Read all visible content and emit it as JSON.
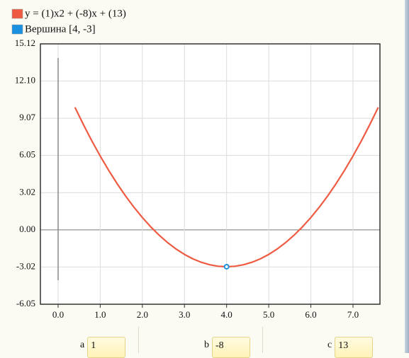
{
  "chart_data": {
    "type": "line",
    "series": [
      {
        "name": "y = (1)x2 + (-8)x + (13)",
        "color": "#ee5b42",
        "x": [
          0.4,
          0.6,
          0.8,
          1.0,
          1.2,
          1.4,
          1.6,
          1.8,
          2.0,
          2.2,
          2.4,
          2.6,
          2.8,
          3.0,
          3.2,
          3.4,
          3.6,
          3.8,
          4.0,
          4.2,
          4.4,
          4.6,
          4.8,
          5.0,
          5.2,
          5.4,
          5.6,
          5.8,
          6.0,
          6.2,
          6.4,
          6.6,
          6.8,
          7.0,
          7.2,
          7.4,
          7.6
        ],
        "values": [
          9.96,
          8.56,
          7.24,
          6,
          4.84,
          3.76,
          2.76,
          1.84,
          1,
          0.24,
          -0.44,
          -1.04,
          -1.56,
          -2,
          -2.36,
          -2.64,
          -2.84,
          -2.96,
          -3,
          -2.96,
          -2.84,
          -2.64,
          -2.36,
          -2,
          -1.56,
          -1.04,
          -0.44,
          0.24,
          1,
          1.84,
          2.76,
          3.76,
          4.84,
          6,
          7.24,
          8.56,
          9.96
        ]
      },
      {
        "name": "Вершина [4, -3]",
        "color": "#1b8fe0",
        "type": "scatter",
        "x": [
          4
        ],
        "values": [
          -3
        ]
      }
    ],
    "xlim": [
      -0.42,
      7.64
    ],
    "ylim": [
      -6.05,
      15.12
    ],
    "xticks": [
      {
        "value": 0,
        "label": "0.0"
      },
      {
        "value": 1,
        "label": "1.0"
      },
      {
        "value": 2,
        "label": "2.0"
      },
      {
        "value": 3,
        "label": "3.0"
      },
      {
        "value": 4,
        "label": "4.0"
      },
      {
        "value": 5,
        "label": "5.0"
      },
      {
        "value": 6,
        "label": "6.0"
      },
      {
        "value": 7,
        "label": "7.0"
      }
    ],
    "yticks": [
      -6.05,
      -3.02,
      {
        "value": 0,
        "label": "0.00"
      },
      3.02,
      6.05,
      9.07,
      {
        "value": 12.1,
        "label": "12.10"
      },
      15.12
    ],
    "grid": true,
    "legend": "top-left"
  },
  "controls": [
    {
      "label": "a",
      "value": "1"
    },
    {
      "label": "b",
      "value": "-8"
    },
    {
      "label": "c",
      "value": "13"
    }
  ]
}
